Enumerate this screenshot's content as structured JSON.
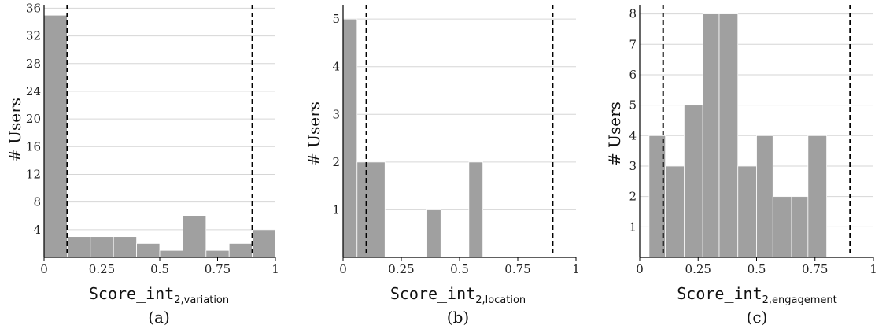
{
  "chart_data": [
    {
      "type": "bar",
      "ylabel": "# Users",
      "xlabel_main": "Score_int",
      "xlabel_sub": "2,variation",
      "caption": "(a)",
      "xlim": [
        0,
        1
      ],
      "ylim": [
        0,
        36.5
      ],
      "xticks": [
        0,
        0.25,
        0.5,
        0.75,
        1
      ],
      "xtick_labels": [
        "0",
        "0.25",
        "0.5",
        "0.75",
        "1"
      ],
      "yticks": [
        4,
        8,
        12,
        16,
        20,
        24,
        28,
        32,
        36
      ],
      "ytick_labels": [
        "4",
        "8",
        "12",
        "16",
        "20",
        "24",
        "28",
        "32",
        "36"
      ],
      "thresholds": [
        0.1,
        0.9
      ],
      "bars": [
        {
          "x0": 0.0,
          "x1": 0.1,
          "value": 35
        },
        {
          "x0": 0.1,
          "x1": 0.2,
          "value": 3
        },
        {
          "x0": 0.2,
          "x1": 0.3,
          "value": 3
        },
        {
          "x0": 0.3,
          "x1": 0.4,
          "value": 3
        },
        {
          "x0": 0.4,
          "x1": 0.5,
          "value": 2
        },
        {
          "x0": 0.5,
          "x1": 0.6,
          "value": 1
        },
        {
          "x0": 0.6,
          "x1": 0.7,
          "value": 6
        },
        {
          "x0": 0.7,
          "x1": 0.8,
          "value": 1
        },
        {
          "x0": 0.8,
          "x1": 0.9,
          "value": 2
        },
        {
          "x0": 0.9,
          "x1": 1.0,
          "value": 4
        }
      ],
      "grid": true,
      "bar_color": "#a0a0a0"
    },
    {
      "type": "bar",
      "ylabel": "# Users",
      "xlabel_main": "Score_int",
      "xlabel_sub": "2,location",
      "caption": "(b)",
      "xlim": [
        0,
        1
      ],
      "ylim": [
        0,
        5.3
      ],
      "xticks": [
        0,
        0.25,
        0.5,
        0.75,
        1
      ],
      "xtick_labels": [
        "0",
        "0.25",
        "0.5",
        "0.75",
        "1"
      ],
      "yticks": [
        1,
        2,
        3,
        4,
        5
      ],
      "ytick_labels": [
        "1",
        "2",
        "3",
        "4",
        "5"
      ],
      "thresholds": [
        0.1,
        0.9
      ],
      "bars": [
        {
          "x0": 0.0,
          "x1": 0.06,
          "value": 5
        },
        {
          "x0": 0.06,
          "x1": 0.12,
          "value": 2
        },
        {
          "x0": 0.12,
          "x1": 0.18,
          "value": 2
        },
        {
          "x0": 0.36,
          "x1": 0.42,
          "value": 1
        },
        {
          "x0": 0.54,
          "x1": 0.6,
          "value": 2
        }
      ],
      "grid": true,
      "bar_color": "#a0a0a0"
    },
    {
      "type": "bar",
      "ylabel": "# Users",
      "xlabel_main": "Score_int",
      "xlabel_sub": "2,engagement",
      "caption": "(c)",
      "xlim": [
        0,
        1
      ],
      "ylim": [
        0,
        8.3
      ],
      "xticks": [
        0,
        0.25,
        0.5,
        0.75,
        1
      ],
      "xtick_labels": [
        "0",
        "0.25",
        "0.5",
        "0.75",
        "1"
      ],
      "yticks": [
        1,
        2,
        3,
        4,
        5,
        6,
        7,
        8
      ],
      "ytick_labels": [
        "1",
        "2",
        "3",
        "4",
        "5",
        "6",
        "7",
        "8"
      ],
      "thresholds": [
        0.1,
        0.9
      ],
      "bars": [
        {
          "x0": 0.04,
          "x1": 0.11,
          "value": 4
        },
        {
          "x0": 0.11,
          "x1": 0.19,
          "value": 3
        },
        {
          "x0": 0.19,
          "x1": 0.27,
          "value": 5
        },
        {
          "x0": 0.27,
          "x1": 0.34,
          "value": 8
        },
        {
          "x0": 0.34,
          "x1": 0.42,
          "value": 8
        },
        {
          "x0": 0.42,
          "x1": 0.5,
          "value": 3
        },
        {
          "x0": 0.5,
          "x1": 0.57,
          "value": 4
        },
        {
          "x0": 0.57,
          "x1": 0.65,
          "value": 2
        },
        {
          "x0": 0.65,
          "x1": 0.72,
          "value": 2
        },
        {
          "x0": 0.72,
          "x1": 0.8,
          "value": 4
        }
      ],
      "grid": true,
      "bar_color": "#a0a0a0"
    }
  ]
}
